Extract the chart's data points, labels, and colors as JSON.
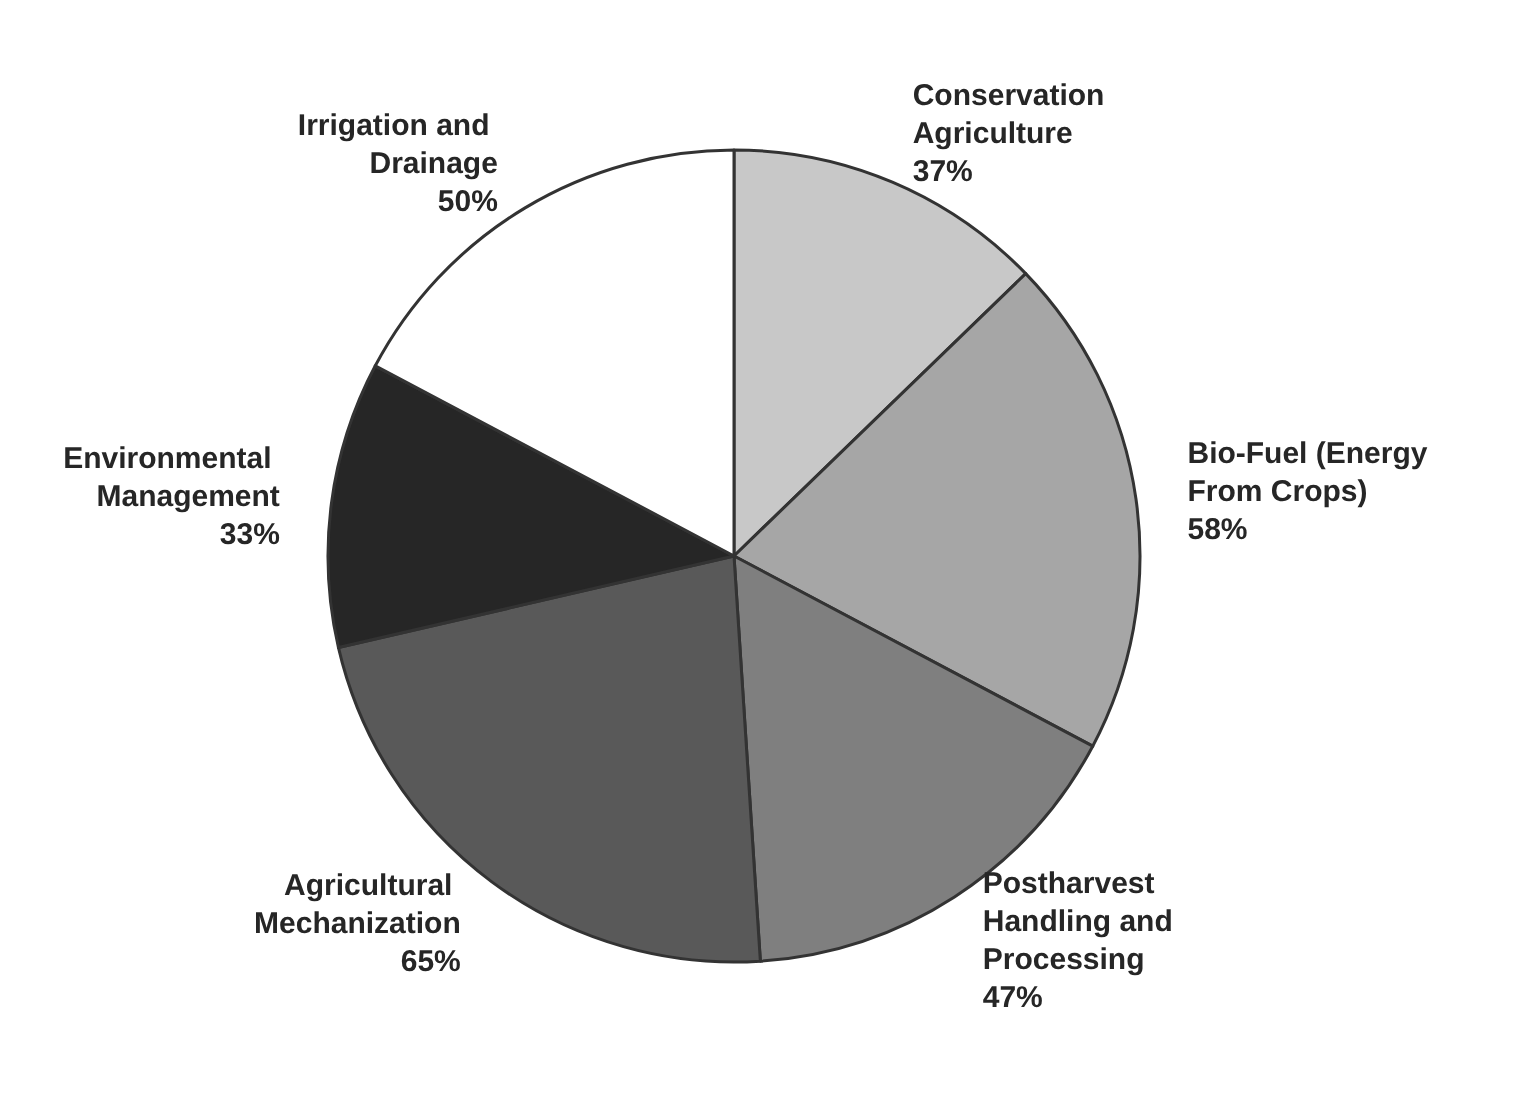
{
  "chart_data": {
    "type": "pie",
    "categories": [
      "Conservation Agriculture",
      "Bio-Fuel (Energy From Crops)",
      "Postharvest Handling and Processing",
      "Agricultural Mechanization",
      "Environmental Management",
      "Irrigation and Drainage"
    ],
    "values": [
      37,
      58,
      47,
      65,
      33,
      50
    ],
    "value_labels": [
      "37%",
      "58%",
      "47%",
      "65%",
      "33%",
      "50%"
    ],
    "colors": [
      "#c8c8c8",
      "#a6a6a6",
      "#7f7f7f",
      "#595959",
      "#262626",
      "#ffffff"
    ],
    "legend": false
  }
}
